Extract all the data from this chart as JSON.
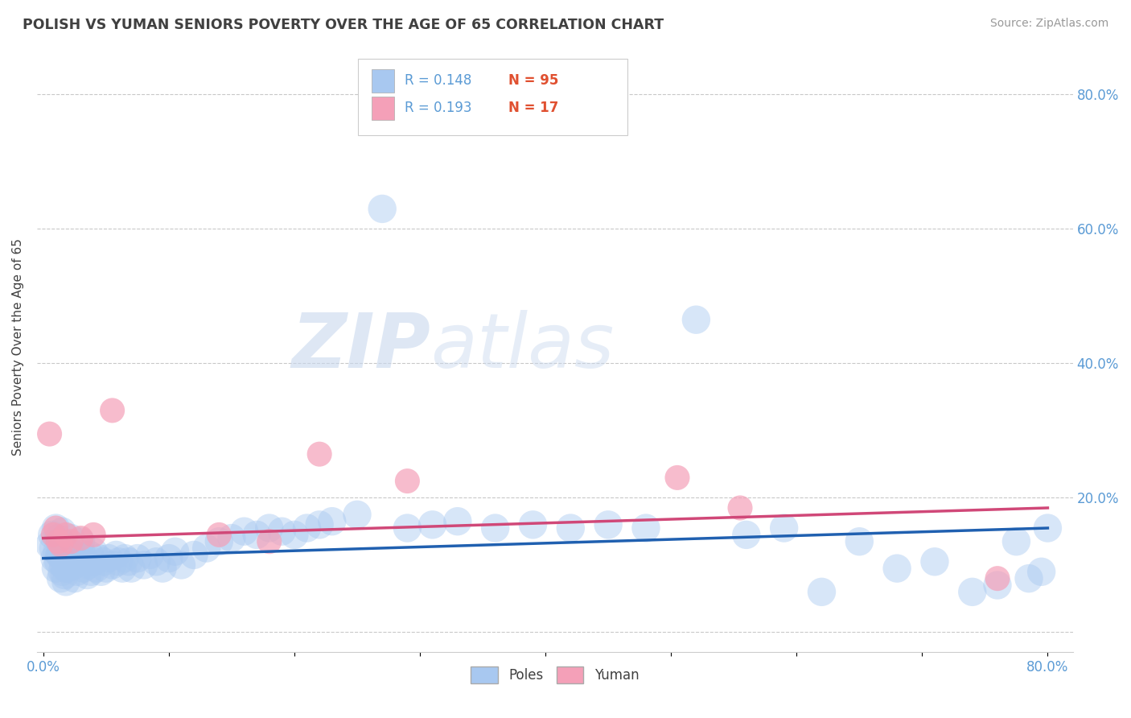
{
  "title": "POLISH VS YUMAN SENIORS POVERTY OVER THE AGE OF 65 CORRELATION CHART",
  "source": "Source: ZipAtlas.com",
  "ylabel": "Seniors Poverty Over the Age of 65",
  "xlim": [
    -0.005,
    0.82
  ],
  "ylim": [
    -0.03,
    0.88
  ],
  "xticks": [
    0.0,
    0.1,
    0.2,
    0.3,
    0.4,
    0.5,
    0.6,
    0.7,
    0.8
  ],
  "yticks": [
    0.0,
    0.2,
    0.4,
    0.6,
    0.8
  ],
  "R_poles": 0.148,
  "N_poles": 95,
  "R_yuman": 0.193,
  "N_yuman": 17,
  "poles_color": "#A8C8F0",
  "yuman_color": "#F4A0B8",
  "trendline_poles_color": "#2060B0",
  "trendline_yuman_color": "#D04878",
  "title_color": "#404040",
  "axis_label_color": "#404040",
  "tick_color": "#5B9BD5",
  "legend_R_color": "#5B9BD5",
  "legend_N_color": "#E05030",
  "watermark_zip": "ZIP",
  "watermark_atlas": "atlas",
  "poles_x": [
    0.005,
    0.007,
    0.008,
    0.009,
    0.01,
    0.011,
    0.012,
    0.013,
    0.014,
    0.015,
    0.01,
    0.012,
    0.013,
    0.014,
    0.015,
    0.016,
    0.017,
    0.018,
    0.019,
    0.02,
    0.015,
    0.018,
    0.02,
    0.022,
    0.025,
    0.025,
    0.026,
    0.027,
    0.028,
    0.03,
    0.03,
    0.032,
    0.033,
    0.035,
    0.036,
    0.037,
    0.038,
    0.04,
    0.04,
    0.042,
    0.044,
    0.046,
    0.048,
    0.05,
    0.052,
    0.055,
    0.058,
    0.06,
    0.063,
    0.065,
    0.068,
    0.07,
    0.075,
    0.08,
    0.085,
    0.09,
    0.095,
    0.1,
    0.105,
    0.11,
    0.12,
    0.13,
    0.14,
    0.15,
    0.16,
    0.17,
    0.18,
    0.19,
    0.2,
    0.21,
    0.22,
    0.23,
    0.25,
    0.27,
    0.29,
    0.31,
    0.33,
    0.36,
    0.39,
    0.42,
    0.45,
    0.48,
    0.52,
    0.56,
    0.59,
    0.62,
    0.65,
    0.68,
    0.71,
    0.74,
    0.76,
    0.775,
    0.785,
    0.795,
    0.8
  ],
  "poles_y": [
    0.13,
    0.145,
    0.125,
    0.11,
    0.155,
    0.12,
    0.14,
    0.115,
    0.135,
    0.15,
    0.095,
    0.105,
    0.115,
    0.08,
    0.09,
    0.1,
    0.085,
    0.075,
    0.095,
    0.11,
    0.125,
    0.095,
    0.115,
    0.14,
    0.08,
    0.1,
    0.115,
    0.09,
    0.105,
    0.12,
    0.135,
    0.095,
    0.11,
    0.085,
    0.1,
    0.115,
    0.09,
    0.105,
    0.12,
    0.095,
    0.11,
    0.09,
    0.105,
    0.095,
    0.11,
    0.1,
    0.115,
    0.105,
    0.095,
    0.11,
    0.105,
    0.095,
    0.11,
    0.1,
    0.115,
    0.105,
    0.095,
    0.11,
    0.12,
    0.1,
    0.115,
    0.125,
    0.135,
    0.14,
    0.15,
    0.145,
    0.155,
    0.15,
    0.145,
    0.155,
    0.16,
    0.165,
    0.175,
    0.63,
    0.155,
    0.16,
    0.165,
    0.155,
    0.16,
    0.155,
    0.16,
    0.155,
    0.465,
    0.145,
    0.155,
    0.06,
    0.135,
    0.095,
    0.105,
    0.06,
    0.07,
    0.135,
    0.08,
    0.09,
    0.155
  ],
  "yuman_x": [
    0.005,
    0.008,
    0.01,
    0.012,
    0.014,
    0.018,
    0.022,
    0.03,
    0.04,
    0.055,
    0.14,
    0.18,
    0.22,
    0.29,
    0.505,
    0.555,
    0.76
  ],
  "yuman_y": [
    0.295,
    0.145,
    0.155,
    0.135,
    0.13,
    0.145,
    0.135,
    0.14,
    0.145,
    0.33,
    0.145,
    0.135,
    0.265,
    0.225,
    0.23,
    0.185,
    0.08
  ],
  "poles_trendline_x": [
    0.0,
    0.8
  ],
  "poles_trendline_y": [
    0.11,
    0.155
  ],
  "yuman_trendline_x": [
    0.0,
    0.8
  ],
  "yuman_trendline_y": [
    0.14,
    0.185
  ],
  "figsize": [
    14.06,
    8.92
  ],
  "dpi": 100
}
